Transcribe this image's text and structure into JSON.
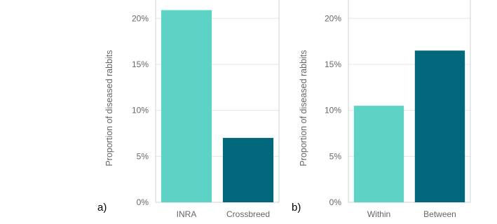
{
  "chart_data": [
    {
      "type": "bar",
      "panel_label": "a)",
      "ylabel": "Proportion of diseased rabbits",
      "categories": [
        "INRA",
        "Crossbreed"
      ],
      "values": [
        0.209,
        0.07
      ],
      "colors": [
        "#5dd3c6",
        "#00687a"
      ],
      "ylim": [
        0,
        0.22
      ],
      "yticks": [
        0,
        0.05,
        0.1,
        0.15,
        0.2
      ],
      "ytick_labels": [
        "0%",
        "5%",
        "10%",
        "15%",
        "20%"
      ],
      "grid": true
    },
    {
      "type": "bar",
      "panel_label": "b)",
      "ylabel": "Proportion of diseased rabbits",
      "categories": [
        "Within",
        "Between"
      ],
      "values": [
        0.105,
        0.165
      ],
      "colors": [
        "#5dd3c6",
        "#00687a"
      ],
      "ylim": [
        0,
        0.22
      ],
      "yticks": [
        0,
        0.05,
        0.1,
        0.15,
        0.2
      ],
      "ytick_labels": [
        "0%",
        "5%",
        "10%",
        "15%",
        "20%"
      ],
      "grid": true
    }
  ]
}
